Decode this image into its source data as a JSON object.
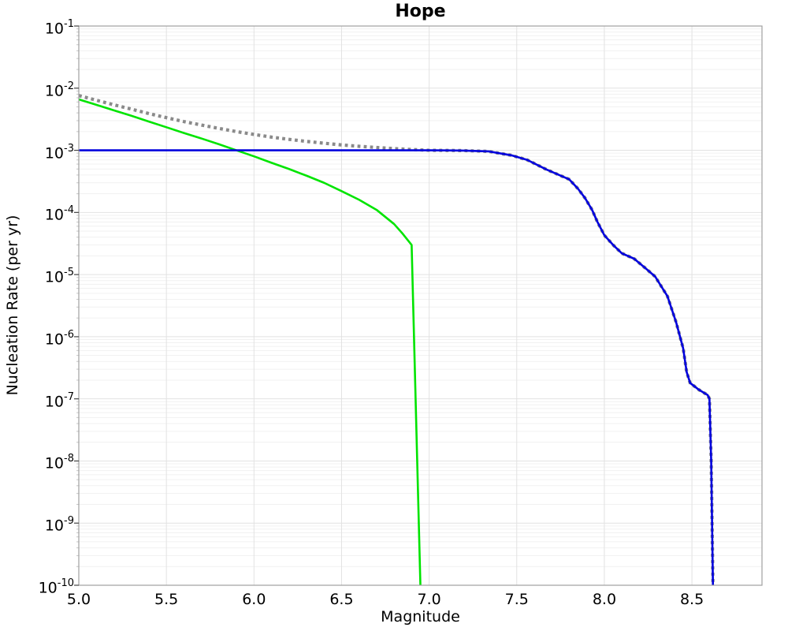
{
  "chart_data": {
    "type": "line",
    "title": "Hope",
    "xlabel": "Magnitude",
    "ylabel": "Nucleation Rate (per yr)",
    "xlim": [
      5.0,
      8.9
    ],
    "ylim": [
      1e-10,
      0.1
    ],
    "y_scale": "log",
    "grid": true,
    "legend": "none",
    "background": "#ffffff",
    "grid_major_color": "#e2e2e2",
    "grid_minor_color": "#f1f1f1",
    "border_color": "#a0a0a0",
    "tick_color": "#444444",
    "minor_tick_color": "#c8c8c8",
    "x_ticks": [
      5.0,
      5.5,
      6.0,
      6.5,
      7.0,
      7.5,
      8.0,
      8.5
    ],
    "x_tick_labels": [
      "5.0",
      "5.5",
      "6.0",
      "6.5",
      "7.0",
      "7.5",
      "8.0",
      "8.5"
    ],
    "y_tick_base": "10",
    "y_tick_exponents": [
      "-1",
      "-2",
      "-3",
      "-4",
      "-5",
      "-6",
      "-7",
      "-8",
      "-9",
      "-10"
    ],
    "series": [
      {
        "name": "green-solid-curve",
        "color": "#00e400",
        "style": "solid",
        "width": 2.6,
        "x": [
          5.0,
          5.1,
          5.2,
          5.3,
          5.4,
          5.5,
          5.6,
          5.7,
          5.8,
          5.9,
          6.0,
          6.1,
          6.2,
          6.3,
          6.4,
          6.5,
          6.6,
          6.7,
          6.8,
          6.85,
          6.9,
          6.95
        ],
        "y": [
          0.0066,
          0.0054,
          0.0044,
          0.0036,
          0.0029,
          0.00235,
          0.0019,
          0.00155,
          0.00125,
          0.001,
          0.0008,
          0.00063,
          0.0005,
          0.00039,
          0.0003,
          0.00022,
          0.00016,
          0.00011,
          6.5e-05,
          4.5e-05,
          3e-05,
          1e-10
        ]
      },
      {
        "name": "gray-dotted-total-curve",
        "color": "#8a8a8a",
        "style": "dotted",
        "width": 4.2,
        "x": [
          5.0,
          5.1,
          5.2,
          5.3,
          5.4,
          5.5,
          5.6,
          5.7,
          5.8,
          5.9,
          6.0,
          6.1,
          6.2,
          6.3,
          6.4,
          6.5,
          6.6,
          6.7,
          6.8,
          6.9,
          7.0,
          7.1,
          7.2,
          7.34,
          7.47,
          7.56,
          7.67,
          7.8,
          7.85,
          7.89,
          7.93,
          7.96,
          8.0,
          8.05,
          8.1,
          8.17,
          8.23,
          8.29,
          8.36,
          8.41,
          8.45,
          8.47,
          8.49,
          8.54,
          8.59,
          8.6,
          8.61,
          8.62
        ],
        "y": [
          0.0076,
          0.0064,
          0.0054,
          0.0046,
          0.0039,
          0.00335,
          0.0029,
          0.00255,
          0.00225,
          0.002,
          0.0018,
          0.00163,
          0.0015,
          0.00139,
          0.0013,
          0.00122,
          0.00116,
          0.00111,
          0.001065,
          0.00103,
          0.001,
          0.000995,
          0.00099,
          0.00096,
          0.00083,
          0.0007,
          0.00049,
          0.00034,
          0.00024,
          0.00017,
          0.00011,
          7.1e-05,
          4.3e-05,
          3e-05,
          2.2e-05,
          1.8e-05,
          1.3e-05,
          9.3e-06,
          4.5e-06,
          1.7e-06,
          6.5e-07,
          2.7e-07,
          1.8e-07,
          1.4e-07,
          1.15e-07,
          1e-07,
          1e-08,
          1e-10
        ]
      },
      {
        "name": "blue-solid-curve",
        "color": "#0000dd",
        "style": "solid",
        "width": 2.6,
        "x": [
          5.0,
          6.0,
          6.5,
          7.0,
          7.1,
          7.2,
          7.34,
          7.47,
          7.56,
          7.67,
          7.8,
          7.85,
          7.89,
          7.93,
          7.96,
          8.0,
          8.05,
          8.1,
          8.17,
          8.23,
          8.29,
          8.36,
          8.41,
          8.45,
          8.47,
          8.49,
          8.54,
          8.59,
          8.6,
          8.61,
          8.62
        ],
        "y": [
          0.001,
          0.001,
          0.001,
          0.001,
          0.000995,
          0.00099,
          0.00096,
          0.00083,
          0.0007,
          0.00049,
          0.00034,
          0.00024,
          0.00017,
          0.00011,
          7.1e-05,
          4.3e-05,
          3e-05,
          2.2e-05,
          1.8e-05,
          1.3e-05,
          9.3e-06,
          4.5e-06,
          1.7e-06,
          6.5e-07,
          2.7e-07,
          1.8e-07,
          1.4e-07,
          1.15e-07,
          1e-07,
          1e-08,
          1e-10
        ]
      }
    ]
  }
}
